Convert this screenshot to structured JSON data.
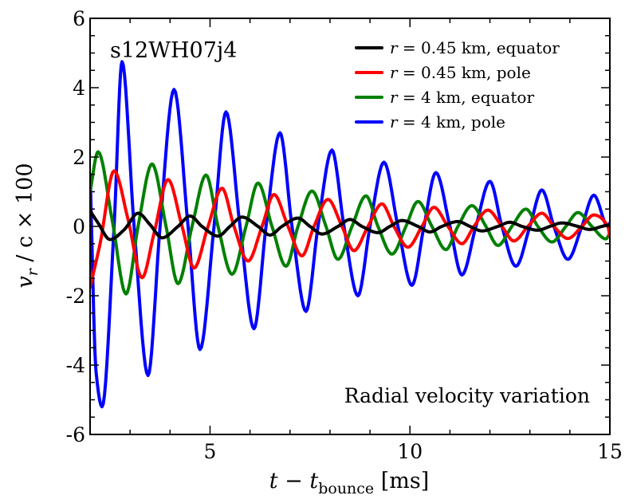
{
  "chart_data": {
    "type": "line",
    "title": "s12WH07j4",
    "annotation": "Radial velocity variation",
    "xlabel": "t − t_bounce [ms]",
    "ylabel": "v_r / c × 100",
    "xlabel_parts": {
      "t": "t",
      "minus": " − ",
      "tb": "t",
      "sub": "bounce",
      "unit": " [ms]"
    },
    "ylabel_parts": {
      "v": "v",
      "sub": "r",
      "rest": " / c × 100"
    },
    "xlim": [
      2,
      15
    ],
    "ylim": [
      -6,
      6
    ],
    "xticks": [
      5,
      10,
      15
    ],
    "xtick_labels": [
      "5",
      "10",
      "15"
    ],
    "yticks": [
      -6,
      -4,
      -2,
      0,
      2,
      4,
      6
    ],
    "ytick_labels": [
      "-6",
      "-4",
      "-2",
      "0",
      "2",
      "4",
      "6"
    ],
    "grid": false,
    "legend_position": "top-right",
    "series": [
      {
        "name": "r = 0.45 km, equator",
        "legend": {
          "r": "r",
          "rest": " = 0.45 km, equator"
        },
        "color": "#000000",
        "x": [
          2.0,
          2.2,
          2.5,
          2.85,
          3.2,
          3.5,
          3.8,
          4.2,
          4.5,
          4.8,
          5.2,
          5.5,
          5.8,
          6.2,
          6.5,
          6.8,
          7.2,
          7.5,
          7.8,
          8.2,
          8.5,
          8.8,
          9.2,
          9.5,
          9.8,
          10.2,
          10.5,
          10.8,
          11.2,
          11.5,
          11.8,
          12.2,
          12.5,
          12.8,
          13.2,
          13.5,
          13.8,
          14.2,
          14.5,
          14.8,
          15.0
        ],
        "y": [
          0.45,
          0.1,
          -0.38,
          -0.1,
          0.38,
          0.05,
          -0.33,
          0.0,
          0.3,
          0.0,
          -0.28,
          0.0,
          0.27,
          0.0,
          -0.25,
          0.0,
          0.24,
          0.0,
          -0.22,
          0.0,
          0.2,
          0.0,
          -0.18,
          0.0,
          0.17,
          0.0,
          -0.16,
          0.0,
          0.14,
          0.0,
          -0.13,
          0.0,
          0.12,
          0.0,
          -0.11,
          0.0,
          0.1,
          0.0,
          -0.09,
          0.0,
          0.05
        ]
      },
      {
        "name": "r = 0.45 km, pole",
        "legend": {
          "r": "r",
          "rest": " = 0.45 km, pole"
        },
        "color": "#ff0000",
        "x": [
          2.0,
          2.25,
          2.6,
          2.95,
          3.3,
          3.6,
          3.95,
          4.3,
          4.6,
          4.95,
          5.3,
          5.6,
          5.95,
          6.3,
          6.6,
          6.95,
          7.3,
          7.6,
          7.95,
          8.3,
          8.6,
          8.95,
          9.3,
          9.6,
          9.95,
          10.3,
          10.6,
          10.95,
          11.3,
          11.6,
          11.95,
          12.3,
          12.6,
          12.95,
          13.3,
          13.6,
          13.95,
          14.3,
          14.6,
          14.95,
          15.0
        ],
        "y": [
          -1.75,
          -0.5,
          1.6,
          0.2,
          -1.48,
          -0.2,
          1.35,
          0.0,
          -1.2,
          0.0,
          1.1,
          0.0,
          -1.0,
          0.0,
          0.92,
          0.0,
          -0.85,
          0.0,
          0.78,
          0.0,
          -0.7,
          0.0,
          0.65,
          0.0,
          -0.6,
          0.0,
          0.55,
          0.0,
          -0.5,
          0.0,
          0.47,
          0.0,
          -0.42,
          0.0,
          0.38,
          0.0,
          -0.35,
          0.0,
          0.33,
          0.0,
          -0.28
        ]
      },
      {
        "name": "r = 4 km, equator",
        "legend": {
          "r": "r",
          "rest": " = 4 km, equator"
        },
        "color": "#008000",
        "x": [
          2.0,
          2.2,
          2.55,
          2.9,
          3.2,
          3.55,
          3.9,
          4.2,
          4.55,
          4.9,
          5.2,
          5.55,
          5.9,
          6.2,
          6.55,
          6.9,
          7.2,
          7.55,
          7.9,
          8.2,
          8.55,
          8.9,
          9.2,
          9.55,
          9.9,
          10.2,
          10.55,
          10.9,
          11.2,
          11.55,
          11.9,
          12.2,
          12.55,
          12.9,
          13.2,
          13.55,
          13.9,
          14.2,
          14.55,
          14.9,
          15.0
        ],
        "y": [
          1.0,
          2.15,
          0.2,
          -1.95,
          0.0,
          1.8,
          0.0,
          -1.65,
          0.0,
          1.48,
          0.0,
          -1.38,
          0.0,
          1.25,
          0.0,
          -1.15,
          0.0,
          1.02,
          0.0,
          -0.95,
          0.0,
          0.88,
          0.0,
          -0.8,
          0.0,
          0.72,
          0.0,
          -0.67,
          0.0,
          0.6,
          0.0,
          -0.55,
          0.0,
          0.5,
          0.0,
          -0.45,
          0.0,
          0.4,
          0.0,
          -0.36,
          -0.2
        ]
      },
      {
        "name": "r = 4 km, pole",
        "legend": {
          "r": "r",
          "rest": " = 4 km, pole"
        },
        "color": "#0000ff",
        "x": [
          2.0,
          2.15,
          2.3,
          2.6,
          2.8,
          3.1,
          3.45,
          3.75,
          4.1,
          4.45,
          4.75,
          5.1,
          5.4,
          5.75,
          6.1,
          6.4,
          6.75,
          7.05,
          7.4,
          7.7,
          8.05,
          8.35,
          8.7,
          9.0,
          9.35,
          9.7,
          10.05,
          10.35,
          10.65,
          11.0,
          11.3,
          11.65,
          12.0,
          12.3,
          12.65,
          13.0,
          13.3,
          13.6,
          13.95,
          14.3,
          14.6,
          14.95,
          15.0
        ],
        "y": [
          1.5,
          -4.2,
          -5.2,
          0.0,
          4.75,
          0.0,
          -4.3,
          0.0,
          3.95,
          0.0,
          -3.55,
          0.0,
          3.3,
          0.0,
          -2.95,
          0.0,
          2.7,
          0.0,
          -2.45,
          0.0,
          2.2,
          0.0,
          -2.0,
          0.0,
          1.85,
          0.0,
          -1.7,
          0.0,
          1.55,
          0.0,
          -1.4,
          0.0,
          1.3,
          0.0,
          -1.15,
          0.0,
          1.05,
          0.0,
          -0.95,
          0.0,
          0.9,
          0.0,
          0.1
        ]
      }
    ]
  }
}
